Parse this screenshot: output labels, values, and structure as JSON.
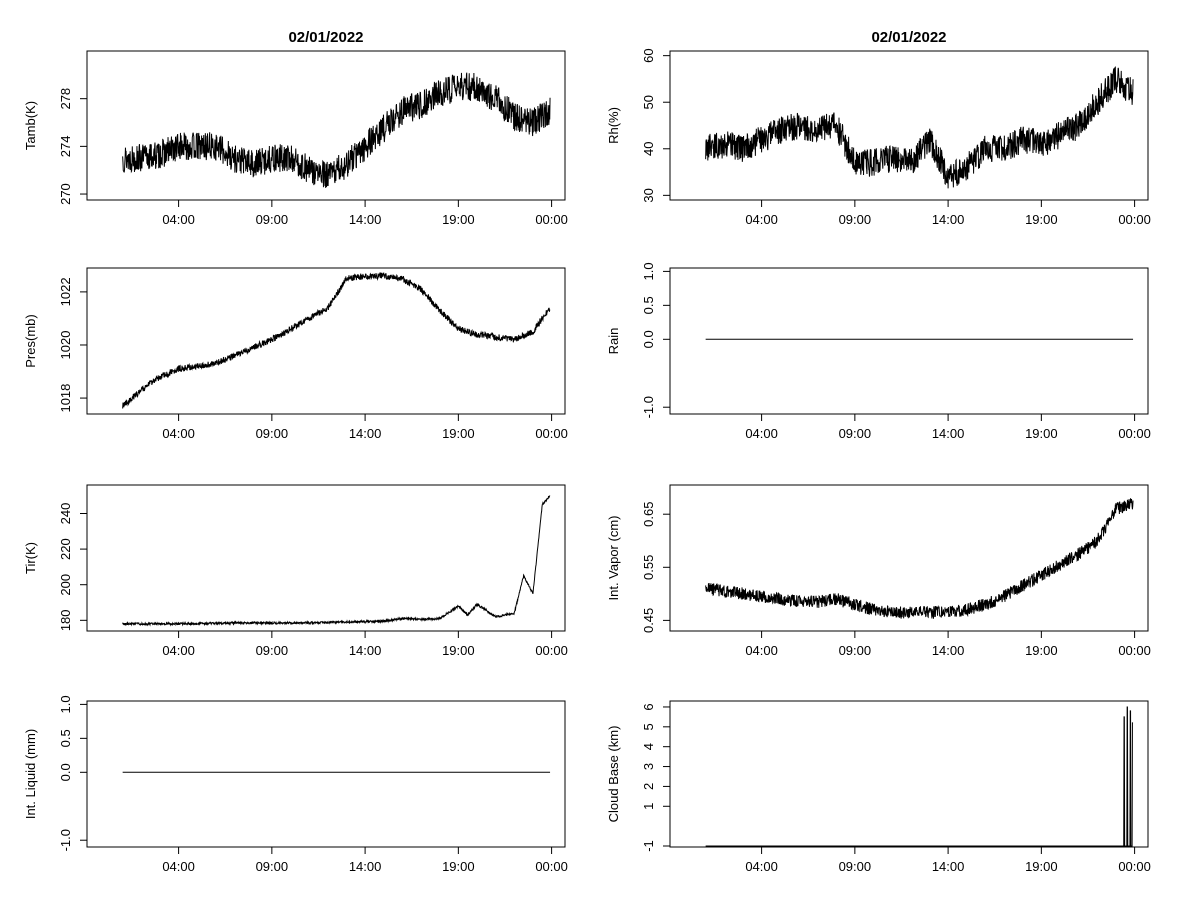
{
  "chart_data": [
    {
      "id": "tamb",
      "type": "line",
      "title": "02/01/2022",
      "ylabel": "Tamb(K)",
      "xlabel": "",
      "x_domain": [
        "00:00",
        "24:00"
      ],
      "x_ticks": [
        "04:00",
        "09:00",
        "14:00",
        "19:00",
        "00:00"
      ],
      "ylim": [
        269.5,
        282
      ],
      "y_ticks": [
        270,
        274,
        278
      ],
      "y_tick_labels": [
        "270",
        "274",
        "278"
      ],
      "series": [
        {
          "x": [
            "01:00",
            "02:00",
            "03:00",
            "04:00",
            "05:00",
            "06:00",
            "07:00",
            "08:00",
            "09:00",
            "10:00",
            "11:00",
            "12:00",
            "13:00",
            "14:00",
            "15:00",
            "16:00",
            "17:00",
            "18:00",
            "19:00",
            "20:00",
            "21:00",
            "22:00",
            "23:00",
            "23:55"
          ],
          "values": [
            273,
            273,
            273.3,
            274,
            274,
            274,
            273,
            272.5,
            273,
            273,
            272,
            271.5,
            272.5,
            274,
            275.5,
            277,
            277.5,
            278.5,
            279,
            279,
            278,
            276.5,
            276,
            277
          ],
          "noise": 1.2
        }
      ]
    },
    {
      "id": "rh",
      "type": "line",
      "title": "02/01/2022",
      "ylabel": "Rh(%)",
      "xlabel": "",
      "x_domain": [
        "00:00",
        "24:00"
      ],
      "x_ticks": [
        "04:00",
        "09:00",
        "14:00",
        "19:00",
        "00:00"
      ],
      "ylim": [
        29,
        61
      ],
      "y_ticks": [
        30,
        40,
        50,
        60
      ],
      "y_tick_labels": [
        "30",
        "40",
        "50",
        "60"
      ],
      "series": [
        {
          "x": [
            "01:00",
            "02:00",
            "03:00",
            "04:00",
            "05:00",
            "06:00",
            "07:00",
            "08:00",
            "09:00",
            "10:00",
            "11:00",
            "12:00",
            "13:00",
            "14:00",
            "15:00",
            "16:00",
            "17:00",
            "18:00",
            "19:00",
            "20:00",
            "21:00",
            "22:00",
            "23:00",
            "23:55"
          ],
          "values": [
            40,
            41,
            40,
            42,
            44,
            45,
            44,
            45,
            37,
            37,
            38,
            37,
            42,
            34,
            36,
            40,
            40,
            42,
            41,
            43,
            45,
            50,
            55,
            52
          ],
          "noise": 3.0
        }
      ]
    },
    {
      "id": "pres",
      "type": "line",
      "title": "",
      "ylabel": "Pres(mb)",
      "xlabel": "",
      "x_domain": [
        "00:00",
        "24:00"
      ],
      "x_ticks": [
        "04:00",
        "09:00",
        "14:00",
        "19:00",
        "00:00"
      ],
      "ylim": [
        1017.4,
        1022.9
      ],
      "y_ticks": [
        1018,
        1020,
        1022
      ],
      "y_tick_labels": [
        "1018",
        "1020",
        "1022"
      ],
      "series": [
        {
          "x": [
            "01:00",
            "02:00",
            "03:00",
            "04:00",
            "05:00",
            "06:00",
            "07:00",
            "08:00",
            "09:00",
            "10:00",
            "11:00",
            "12:00",
            "13:00",
            "14:00",
            "15:00",
            "16:00",
            "17:00",
            "18:00",
            "19:00",
            "20:00",
            "21:00",
            "22:00",
            "23:00",
            "23:55"
          ],
          "values": [
            1017.7,
            1018.3,
            1018.8,
            1019.1,
            1019.2,
            1019.3,
            1019.6,
            1019.9,
            1020.2,
            1020.6,
            1021.0,
            1021.4,
            1022.5,
            1022.6,
            1022.6,
            1022.5,
            1022.1,
            1021.3,
            1020.6,
            1020.4,
            1020.3,
            1020.2,
            1020.5,
            1021.4
          ],
          "noise": 0.12
        }
      ]
    },
    {
      "id": "rain",
      "type": "line",
      "title": "",
      "ylabel": "Rain",
      "xlabel": "",
      "x_domain": [
        "00:00",
        "24:00"
      ],
      "x_ticks": [
        "04:00",
        "09:00",
        "14:00",
        "19:00",
        "00:00"
      ],
      "ylim": [
        -1.1,
        1.05
      ],
      "y_ticks": [
        -1.0,
        0.0,
        0.5,
        1.0
      ],
      "y_tick_labels": [
        "-1.0",
        "0.0",
        "0.5",
        "1.0"
      ],
      "series": [
        {
          "x": [
            "01:00",
            "23:55"
          ],
          "values": [
            0,
            0
          ],
          "noise": 0
        }
      ]
    },
    {
      "id": "tir",
      "type": "line",
      "title": "",
      "ylabel": "Tir(K)",
      "xlabel": "",
      "x_domain": [
        "00:00",
        "24:00"
      ],
      "x_ticks": [
        "04:00",
        "09:00",
        "14:00",
        "19:00",
        "00:00"
      ],
      "ylim": [
        174,
        256
      ],
      "y_ticks": [
        180,
        200,
        220,
        240
      ],
      "y_tick_labels": [
        "180",
        "200",
        "220",
        "240"
      ],
      "series": [
        {
          "x": [
            "01:00",
            "04:00",
            "07:00",
            "10:00",
            "13:00",
            "15:00",
            "16:00",
            "17:00",
            "18:00",
            "19:00",
            "19:30",
            "20:00",
            "21:00",
            "22:00",
            "22:30",
            "23:00",
            "23:30",
            "23:55"
          ],
          "values": [
            178,
            178,
            178.5,
            178.5,
            179,
            179.5,
            181,
            180.5,
            181,
            188,
            183,
            189,
            182,
            184,
            205,
            195,
            245,
            250
          ],
          "noise": 0.6
        }
      ]
    },
    {
      "id": "vapor",
      "type": "line",
      "title": "",
      "ylabel": "Int. Vapor (cm)",
      "xlabel": "",
      "x_domain": [
        "00:00",
        "24:00"
      ],
      "x_ticks": [
        "04:00",
        "09:00",
        "14:00",
        "19:00",
        "00:00"
      ],
      "ylim": [
        0.43,
        0.705
      ],
      "y_ticks": [
        0.45,
        0.55,
        0.65
      ],
      "y_tick_labels": [
        "0.45",
        "0.55",
        "0.65"
      ],
      "series": [
        {
          "x": [
            "01:00",
            "02:00",
            "03:00",
            "04:00",
            "05:00",
            "06:00",
            "07:00",
            "08:00",
            "09:00",
            "10:00",
            "11:00",
            "12:00",
            "13:00",
            "14:00",
            "15:00",
            "16:00",
            "17:00",
            "18:00",
            "19:00",
            "20:00",
            "21:00",
            "22:00",
            "23:00",
            "23:55"
          ],
          "values": [
            0.51,
            0.505,
            0.5,
            0.495,
            0.49,
            0.485,
            0.485,
            0.49,
            0.48,
            0.47,
            0.465,
            0.465,
            0.465,
            0.465,
            0.47,
            0.48,
            0.495,
            0.515,
            0.535,
            0.555,
            0.575,
            0.6,
            0.66,
            0.67
          ],
          "noise": 0.012
        }
      ]
    },
    {
      "id": "liquid",
      "type": "line",
      "title": "",
      "ylabel": "Int. Liquid (mm)",
      "xlabel": "",
      "x_domain": [
        "00:00",
        "24:00"
      ],
      "x_ticks": [
        "04:00",
        "09:00",
        "14:00",
        "19:00",
        "00:00"
      ],
      "ylim": [
        -1.1,
        1.05
      ],
      "y_ticks": [
        -1.0,
        0.0,
        0.5,
        1.0
      ],
      "y_tick_labels": [
        "-1.0",
        "0.0",
        "0.5",
        "1.0"
      ],
      "series": [
        {
          "x": [
            "01:00",
            "23:55"
          ],
          "values": [
            0,
            0
          ],
          "noise": 0
        }
      ]
    },
    {
      "id": "cloud",
      "type": "line",
      "title": "",
      "ylabel": "Cloud Base (km)",
      "xlabel": "",
      "x_domain": [
        "00:00",
        "24:00"
      ],
      "x_ticks": [
        "04:00",
        "09:00",
        "14:00",
        "19:00",
        "00:00"
      ],
      "ylim": [
        -1.05,
        6.3
      ],
      "y_ticks": [
        -1,
        1,
        2,
        3,
        4,
        5,
        6
      ],
      "y_tick_labels": [
        "-1",
        "1",
        "2",
        "3",
        "4",
        "5",
        "6"
      ],
      "series": [
        {
          "x": [
            "01:00",
            "23:25",
            "23:26",
            "23:27",
            "23:28",
            "23:35",
            "23:36",
            "23:37",
            "23:38",
            "23:45",
            "23:46",
            "23:47",
            "23:48",
            "23:52",
            "23:53",
            "23:54",
            "23:55"
          ],
          "values": [
            -1,
            -1,
            5.5,
            5.5,
            -1,
            -1,
            6,
            6,
            -1,
            -1,
            5.8,
            5.8,
            -1,
            -1,
            5.2,
            5.2,
            5.2
          ],
          "noise": 0
        }
      ]
    }
  ]
}
